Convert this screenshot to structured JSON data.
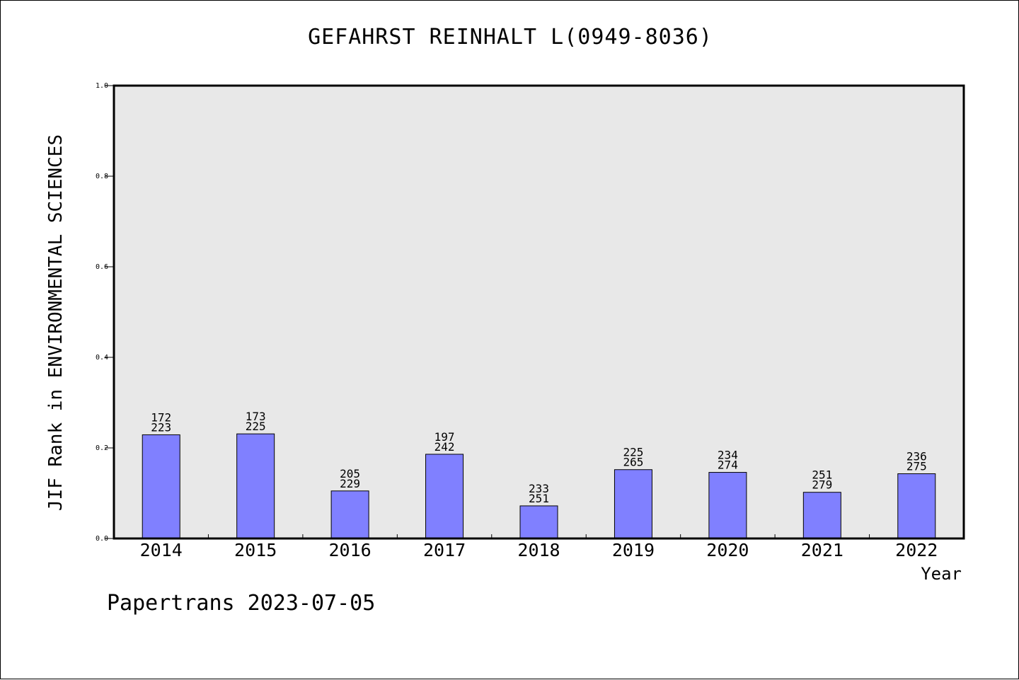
{
  "chart_data": {
    "type": "bar",
    "title": "GEFAHRST REINHALT L(0949-8036)",
    "xlabel": "Year",
    "ylabel": "JIF Rank in ENVIRONMENTAL SCIENCES",
    "ylim": [
      0,
      1.0
    ],
    "yticks": [
      "0.0",
      "0.2",
      "0.4",
      "0.6",
      "0.8",
      "1.0"
    ],
    "categories": [
      "2014",
      "2015",
      "2016",
      "2017",
      "2018",
      "2019",
      "2020",
      "2021",
      "2022"
    ],
    "values": [
      0.229,
      0.231,
      0.105,
      0.186,
      0.072,
      0.152,
      0.146,
      0.102,
      0.143
    ],
    "rank_labels": [
      "172",
      "173",
      "205",
      "197",
      "233",
      "225",
      "234",
      "251",
      "236"
    ],
    "total_labels": [
      "223",
      "225",
      "229",
      "242",
      "251",
      "265",
      "274",
      "279",
      "275"
    ],
    "grid": false,
    "legend": "none",
    "colors": {
      "bar_fill": "#8080ff",
      "plot_background": "#e8e8e8",
      "axis": "#000000"
    }
  },
  "footer": {
    "text": "Papertrans 2023-07-05"
  }
}
